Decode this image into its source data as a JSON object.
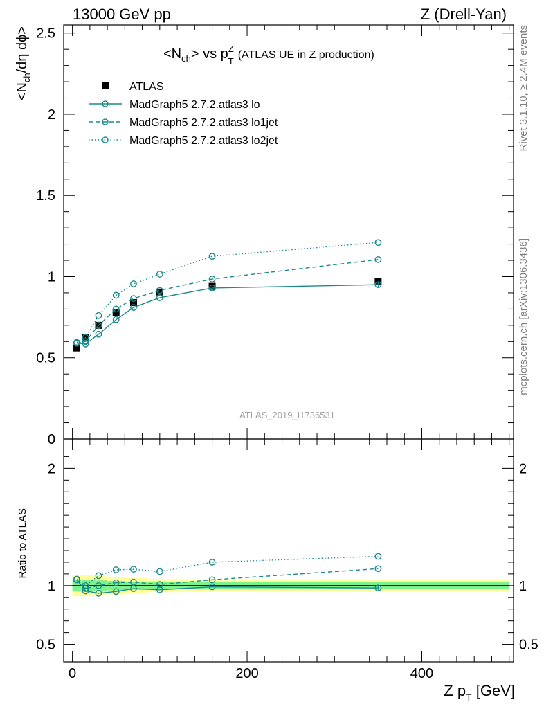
{
  "header": {
    "left": "13000 GeV pp",
    "right": "Z (Drell-Yan)"
  },
  "side_text": {
    "rivet": "Rivet 3.1.10, ≥ 2.4M events",
    "mcplots": "mcplots.cern.ch [arXiv:1306.3436]"
  },
  "watermark": "ATLAS_2019_I1736531",
  "colors": {
    "mc": "#1a8a8a",
    "band_inner": "#7cf28f",
    "band_outer": "#fffe9a",
    "data": "#000000"
  },
  "chart_data": [
    {
      "type": "scatter",
      "panel": "main",
      "title_parts": {
        "a": "<N",
        "a_sub": "ch",
        "b": "> vs p",
        "b_sup": "Z",
        "b_sub": "T",
        "c": "(ATLAS UE in Z production)"
      },
      "ylabel": "<Nₙₕ/dη dϕ>",
      "ylabel_parts": {
        "a": "<N",
        "sub": "ch",
        "b": "/dη dϕ>"
      },
      "xlim": [
        -10,
        505
      ],
      "ylim": [
        0,
        2.55
      ],
      "yticks": [
        "0",
        "0.5",
        "1",
        "1.5",
        "2",
        "2.5"
      ],
      "x": [
        5,
        15,
        30,
        50,
        70,
        100,
        160,
        350
      ],
      "series": [
        {
          "name": "ATLAS",
          "style": "data",
          "values": [
            0.56,
            0.625,
            0.7,
            0.78,
            0.84,
            0.905,
            0.94,
            0.97
          ]
        },
        {
          "name": "MadGraph5 2.7.2.atlas3 lo",
          "style": "solid",
          "values": [
            0.59,
            0.585,
            0.645,
            0.735,
            0.81,
            0.87,
            0.93,
            0.95
          ]
        },
        {
          "name": "MadGraph5 2.7.2.atlas3 lo1jet",
          "style": "dashed",
          "values": [
            0.59,
            0.6,
            0.7,
            0.8,
            0.865,
            0.915,
            0.985,
            1.105
          ]
        },
        {
          "name": "MadGraph5 2.7.2.atlas3 lo2jet",
          "style": "dotted",
          "values": [
            0.595,
            0.625,
            0.76,
            0.885,
            0.955,
            1.015,
            1.125,
            1.21
          ]
        }
      ]
    },
    {
      "type": "line",
      "panel": "ratio",
      "ylabel": "Ratio to ATLAS",
      "xlabel_parts": {
        "a": "Z p",
        "sub": "T",
        "b": " [GeV]"
      },
      "xlim": [
        -10,
        505
      ],
      "ylim": [
        0.35,
        2.25
      ],
      "yticks": [
        "0.5",
        "1",
        "2"
      ],
      "xticks": [
        "0",
        "200",
        "400"
      ],
      "x": [
        5,
        15,
        30,
        50,
        70,
        100,
        160,
        350
      ],
      "band_inner": [
        0.05,
        0.05,
        0.045,
        0.04,
        0.035,
        0.03,
        0.03,
        0.03
      ],
      "band_outer": [
        0.09,
        0.09,
        0.085,
        0.075,
        0.065,
        0.055,
        0.05,
        0.05
      ],
      "series": [
        {
          "name": "MadGraph5 2.7.2.atlas3 lo",
          "style": "solid",
          "values": [
            1.05,
            0.955,
            0.935,
            0.95,
            0.975,
            0.965,
            0.99,
            0.98
          ]
        },
        {
          "name": "MadGraph5 2.7.2.atlas3 lo1jet",
          "style": "dashed",
          "values": [
            1.05,
            0.975,
            1.0,
            1.025,
            1.03,
            1.01,
            1.05,
            1.145
          ]
        },
        {
          "name": "MadGraph5 2.7.2.atlas3 lo2jet",
          "style": "dotted",
          "values": [
            1.055,
            1.0,
            1.085,
            1.135,
            1.14,
            1.12,
            1.2,
            1.25
          ]
        }
      ]
    }
  ]
}
